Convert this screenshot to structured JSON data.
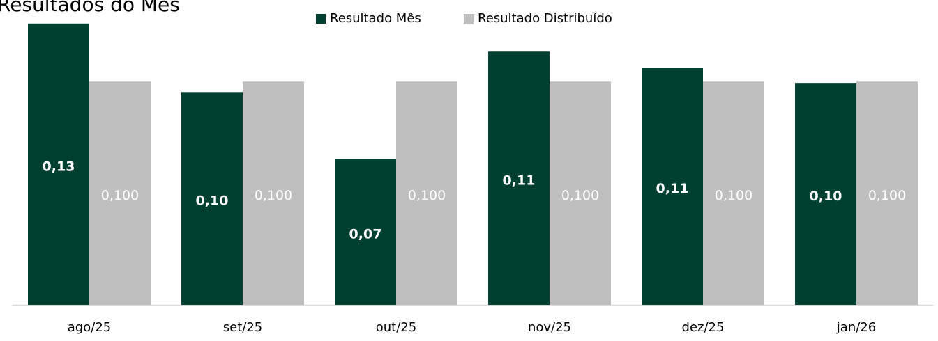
{
  "chart_data": {
    "type": "bar",
    "title": "Resultados do Mês",
    "categories": [
      "ago/25",
      "set/25",
      "out/25",
      "nov/25",
      "dez/25",
      "jan/26"
    ],
    "series": [
      {
        "name": "Resultado Mês",
        "color": "#004030",
        "values": [
          0.126,
          0.0953,
          0.0654,
          0.1134,
          0.1062,
          0.0994
        ],
        "value_labels": [
          "0,13",
          "0,10",
          "0,07",
          "0,11",
          "0,11",
          "0,10"
        ]
      },
      {
        "name": "Resultado Distribuído",
        "color": "#bfbfbf",
        "values": [
          0.1,
          0.1,
          0.1,
          0.1,
          0.1,
          0.1
        ],
        "value_labels": [
          "0,100",
          "0,100",
          "0,100",
          "0,100",
          "0,100",
          "0,100"
        ]
      }
    ],
    "ylim": [
      0,
      0.13
    ],
    "legend": "top"
  }
}
